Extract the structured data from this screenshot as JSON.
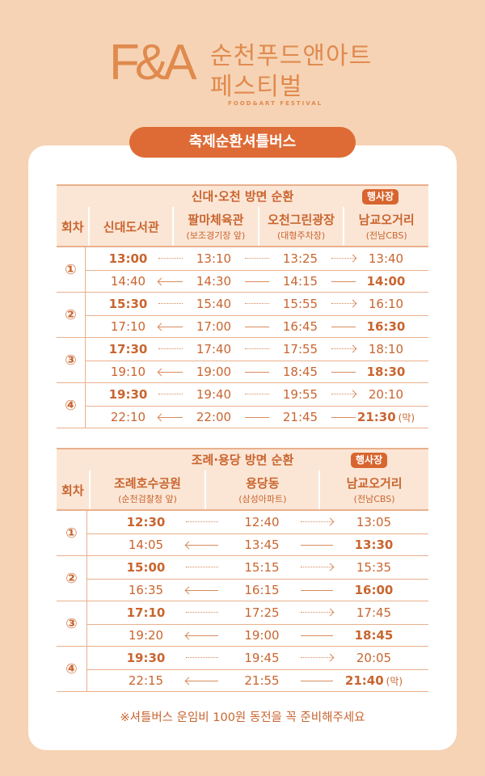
{
  "logo": {
    "mark": "F&A",
    "line1": "순천푸드앤아트",
    "line2": "페스티벌",
    "english": "FOOD&ART FESTIVAL"
  },
  "banner": "축제순환셔틀버스",
  "routes": [
    {
      "title": "신대·오천 방면 순환",
      "badge": "행사장",
      "round_label": "회차",
      "stops": [
        {
          "name": "신대도서관",
          "sub": ""
        },
        {
          "name": "팔마체육관",
          "sub": "(보조경기장 앞)"
        },
        {
          "name": "오천그린광장",
          "sub": "(대형주차장)"
        },
        {
          "name": "남교오거리",
          "sub": "(전남CBS)"
        }
      ],
      "rounds": [
        {
          "num": "①",
          "out": [
            "13:00",
            "13:10",
            "13:25",
            "13:40"
          ],
          "back": [
            "14:40",
            "14:30",
            "14:15",
            "14:00"
          ],
          "note": ""
        },
        {
          "num": "②",
          "out": [
            "15:30",
            "15:40",
            "15:55",
            "16:10"
          ],
          "back": [
            "17:10",
            "17:00",
            "16:45",
            "16:30"
          ],
          "note": ""
        },
        {
          "num": "③",
          "out": [
            "17:30",
            "17:40",
            "17:55",
            "18:10"
          ],
          "back": [
            "19:10",
            "19:00",
            "18:45",
            "18:30"
          ],
          "note": ""
        },
        {
          "num": "④",
          "out": [
            "19:30",
            "19:40",
            "19:55",
            "20:10"
          ],
          "back": [
            "22:10",
            "22:00",
            "21:45",
            "21:30"
          ],
          "note": "(막)"
        }
      ]
    },
    {
      "title": "조례·용당 방면 순환",
      "badge": "행사장",
      "round_label": "회차",
      "stops": [
        {
          "name": "조례호수공원",
          "sub": "(순천검찰청 앞)"
        },
        {
          "name": "용당동",
          "sub": "(삼성아파트)"
        },
        {
          "name": "남교오거리",
          "sub": "(전남CBS)"
        }
      ],
      "rounds": [
        {
          "num": "①",
          "out": [
            "12:30",
            "12:40",
            "13:05"
          ],
          "back": [
            "14:05",
            "13:45",
            "13:30"
          ],
          "note": ""
        },
        {
          "num": "②",
          "out": [
            "15:00",
            "15:15",
            "15:35"
          ],
          "back": [
            "16:35",
            "16:15",
            "16:00"
          ],
          "note": ""
        },
        {
          "num": "③",
          "out": [
            "17:10",
            "17:25",
            "17:45"
          ],
          "back": [
            "19:20",
            "19:00",
            "18:45"
          ],
          "note": ""
        },
        {
          "num": "④",
          "out": [
            "19:30",
            "19:45",
            "20:05"
          ],
          "back": [
            "22:15",
            "21:55",
            "21:40"
          ],
          "note": "(막)"
        }
      ]
    }
  ],
  "footer_note": "※셔틀버스 운임비 100원 동전을 꼭 준비해주세요",
  "colors": {
    "background": "#f6d3b4",
    "accent": "#de6b35",
    "text": "#c9652f",
    "header_fill": "#fbe6d6"
  }
}
